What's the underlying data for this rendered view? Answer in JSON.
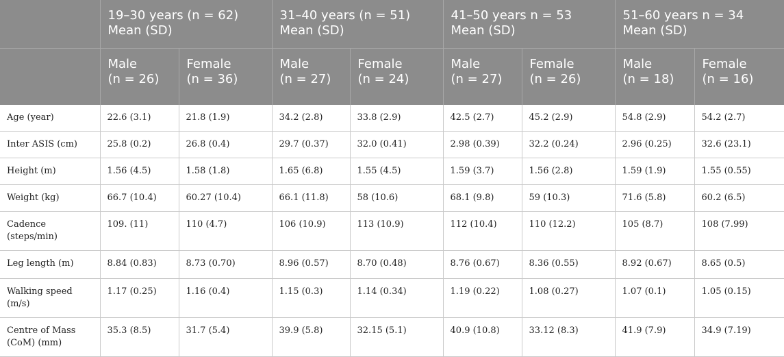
{
  "groups": [
    {
      "title": "19–30 years (n = 62)",
      "sub": "Mean (SD)"
    },
    {
      "title": "31–40 years (n = 51)",
      "sub": "Mean (SD)"
    },
    {
      "title": "41–50 years n = 53",
      "sub": "Mean (SD)"
    },
    {
      "title": "51–60 years n = 34",
      "sub": "Mean (SD)"
    }
  ],
  "subheaders": [
    {
      "label": "Male",
      "n": "(n = 26)"
    },
    {
      "label": "Female",
      "n": "(n = 36)"
    },
    {
      "label": "Male",
      "n": "(n = 27)"
    },
    {
      "label": "Female",
      "n": "(n = 24)"
    },
    {
      "label": "Male",
      "n": "(n = 27)"
    },
    {
      "label": "Female",
      "n": "(n = 26)"
    },
    {
      "label": "Male",
      "n": "(n = 18)"
    },
    {
      "label": "Female",
      "n": "(n = 16)"
    }
  ],
  "rows": [
    {
      "label": "Age (year)",
      "values": [
        "22.6 (3.1)",
        "21.8 (1.9)",
        "34.2 (2.8)",
        "33.8 (2.9)",
        "42.5 (2.7)",
        "45.2 (2.9)",
        "54.8 (2.9)",
        "54.2 (2.7)"
      ]
    },
    {
      "label": "Inter ASIS (cm)",
      "values": [
        "25.8 (0.2)",
        "26.8 (0.4)",
        "29.7 (0.37)",
        "32.0 (0.41)",
        "2.98 (0.39)",
        "32.2 (0.24)",
        "2.96 (0.25)",
        "32.6 (23.1)"
      ]
    },
    {
      "label": "Height (m)",
      "values": [
        "1.56 (4.5)",
        "1.58 (1.8)",
        "1.65 (6.8)",
        "1.55 (4.5)",
        "1.59 (3.7)",
        "1.56 (2.8)",
        "1.59 (1.9)",
        "1.55 (0.55)"
      ]
    },
    {
      "label": "Weight (kg)",
      "values": [
        "66.7 (10.4)",
        "60.27 (10.4)",
        "66.1 (11.8)",
        "58 (10.6)",
        "68.1 (9.8)",
        "59 (10.3)",
        "71.6 (5.8)",
        "60.2 (6.5)"
      ]
    },
    {
      "label": "Cadence",
      "label2": "(steps/min)",
      "values": [
        "109. (11)",
        "110 (4.7)",
        "106 (10.9)",
        "113 (10.9)",
        "112 (10.4)",
        "110 (12.2)",
        "105 (8.7)",
        "108 (7.99)"
      ]
    },
    {
      "label": "Leg length (m)",
      "values": [
        "8.84 (0.83)",
        "8.73 (0.70)",
        "8.96 (0.57)",
        "8.70 (0.48)",
        "8.76 (0.67)",
        "8.36 (0.55)",
        "8.92 (0.67)",
        "8.65 (0.5)"
      ]
    },
    {
      "label": "Walking speed",
      "label2": "(m/s)",
      "values": [
        "1.17 (0.25)",
        "1.16 (0.4)",
        "1.15 (0.3)",
        "1.14 (0.34)",
        "1.19 (0.22)",
        "1.08 (0.27)",
        "1.07 (0.1)",
        "1.05 (0.15)"
      ]
    },
    {
      "label": "Centre of Mass",
      "label2": "(CoM) (mm)",
      "values": [
        "35.3 (8.5)",
        "31.7 (5.4)",
        "39.9 (5.8)",
        "32.15 (5.1)",
        "40.9 (10.8)",
        "33.12 (8.3)",
        "41.9 (7.9)",
        "34.9 (7.19)"
      ]
    }
  ]
}
